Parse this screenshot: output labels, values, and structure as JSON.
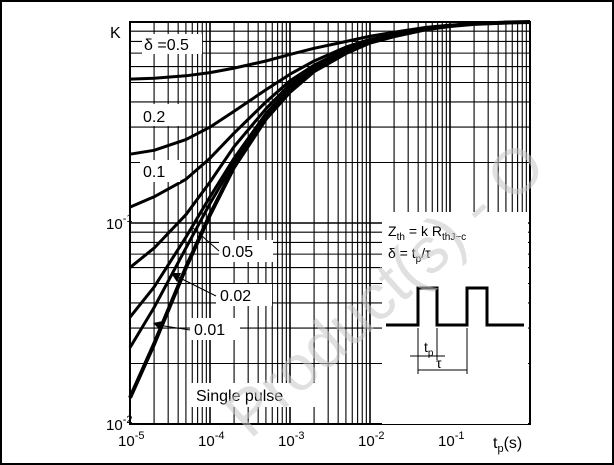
{
  "watermark": "Product(s) - O",
  "chart_data": {
    "type": "line",
    "title": "",
    "xlabel": "t",
    "xlabel_sub": "p",
    "xlabel_unit": "(s)",
    "ylabel": "K",
    "x_scale": "log",
    "y_scale": "log",
    "xlim": [
      1e-05,
      1
    ],
    "ylim": [
      0.01,
      1
    ],
    "grid": true,
    "x_ticks": [
      {
        "value": 1e-05,
        "base": "10",
        "exp": "-5"
      },
      {
        "value": 0.0001,
        "base": "10",
        "exp": "-4"
      },
      {
        "value": 0.001,
        "base": "10",
        "exp": "-3"
      },
      {
        "value": 0.01,
        "base": "10",
        "exp": "-2"
      },
      {
        "value": 0.1,
        "base": "10",
        "exp": "-1"
      }
    ],
    "y_ticks": [
      {
        "value": 0.1,
        "base": "10",
        "exp": "-1"
      },
      {
        "value": 0.01,
        "base": "10",
        "exp": "-2"
      }
    ],
    "series": [
      {
        "name": "δ =0.5",
        "x": [
          1e-05,
          2e-05,
          5e-05,
          0.0001,
          0.0002,
          0.0005,
          0.001,
          0.002,
          0.005,
          0.01,
          0.02,
          0.05,
          0.1,
          0.2,
          0.5,
          1
        ],
        "y": [
          0.52,
          0.525,
          0.54,
          0.56,
          0.59,
          0.64,
          0.69,
          0.74,
          0.8,
          0.85,
          0.89,
          0.94,
          0.965,
          0.98,
          0.995,
          1.0
        ]
      },
      {
        "name": "0.2",
        "x": [
          1e-05,
          2e-05,
          5e-05,
          0.0001,
          0.0002,
          0.0005,
          0.001,
          0.002,
          0.005,
          0.01,
          0.02,
          0.05,
          0.1,
          0.2,
          0.5,
          1
        ],
        "y": [
          0.22,
          0.23,
          0.26,
          0.3,
          0.36,
          0.46,
          0.55,
          0.64,
          0.75,
          0.82,
          0.87,
          0.93,
          0.96,
          0.98,
          0.995,
          1.0
        ]
      },
      {
        "name": "0.1",
        "x": [
          1e-05,
          2e-05,
          5e-05,
          0.0001,
          0.0002,
          0.0005,
          0.001,
          0.002,
          0.005,
          0.01,
          0.02,
          0.05,
          0.1,
          0.2,
          0.5,
          1
        ],
        "y": [
          0.12,
          0.135,
          0.165,
          0.21,
          0.28,
          0.4,
          0.51,
          0.61,
          0.73,
          0.81,
          0.87,
          0.93,
          0.96,
          0.98,
          0.995,
          1.0
        ]
      },
      {
        "name": "0.05",
        "x": [
          1e-05,
          2e-05,
          5e-05,
          0.0001,
          0.0002,
          0.0005,
          0.001,
          0.002,
          0.005,
          0.01,
          0.02,
          0.05,
          0.1,
          0.2,
          0.5,
          1
        ],
        "y": [
          0.06,
          0.075,
          0.11,
          0.16,
          0.24,
          0.37,
          0.49,
          0.6,
          0.72,
          0.8,
          0.86,
          0.93,
          0.96,
          0.98,
          0.995,
          1.0
        ]
      },
      {
        "name": "0.02",
        "x": [
          1e-05,
          2e-05,
          5e-05,
          0.0001,
          0.0002,
          0.0005,
          0.001,
          0.002,
          0.005,
          0.01,
          0.02,
          0.05,
          0.1,
          0.2,
          0.5,
          1
        ],
        "y": [
          0.034,
          0.048,
          0.085,
          0.135,
          0.21,
          0.35,
          0.47,
          0.59,
          0.71,
          0.8,
          0.86,
          0.93,
          0.96,
          0.98,
          0.995,
          1.0
        ]
      },
      {
        "name": "0.01",
        "x": [
          1e-05,
          2e-05,
          5e-05,
          0.0001,
          0.0002,
          0.0005,
          0.001,
          0.002,
          0.005,
          0.01,
          0.02,
          0.05,
          0.1,
          0.2,
          0.5,
          1
        ],
        "y": [
          0.024,
          0.038,
          0.075,
          0.125,
          0.2,
          0.34,
          0.46,
          0.58,
          0.71,
          0.79,
          0.86,
          0.93,
          0.96,
          0.98,
          0.995,
          1.0
        ]
      },
      {
        "name": "Single pulse",
        "x": [
          1e-05,
          2e-05,
          5e-05,
          0.0001,
          0.0002,
          0.0005,
          0.001,
          0.002,
          0.005,
          0.01,
          0.02,
          0.05,
          0.1,
          0.2,
          0.5,
          1
        ],
        "y": [
          0.0135,
          0.025,
          0.06,
          0.11,
          0.19,
          0.33,
          0.45,
          0.57,
          0.7,
          0.79,
          0.85,
          0.92,
          0.955,
          0.978,
          0.993,
          1.0
        ]
      }
    ],
    "annotations": {
      "formula_zth": {
        "lhs": "Z",
        "lhs_sub": "th",
        "rhs": "= k R",
        "rhs_sub": "thJ−c"
      },
      "formula_delta": "δ = t",
      "formula_delta_sub": "p",
      "formula_delta_tail": "/τ",
      "pulse_tp": "t",
      "pulse_tp_sub": "p",
      "pulse_tau": "τ"
    }
  }
}
